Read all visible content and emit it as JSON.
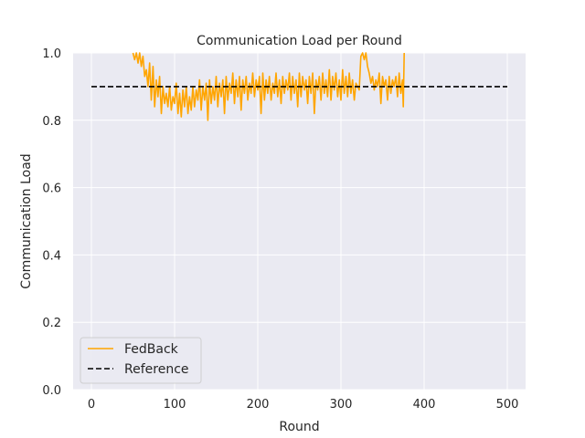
{
  "chart_data": {
    "type": "line",
    "title": "Communication Load per Round",
    "xlabel": "Round",
    "ylabel": "Communication Load",
    "xlim": [
      -22,
      522
    ],
    "ylim": [
      0.0,
      1.0
    ],
    "xticks": [
      0,
      100,
      200,
      300,
      400,
      500
    ],
    "yticks": [
      0.0,
      0.2,
      0.4,
      0.6,
      0.8,
      1.0
    ],
    "xtick_labels": [
      "0",
      "100",
      "200",
      "300",
      "400",
      "500"
    ],
    "ytick_labels": [
      "0.0",
      "0.2",
      "0.4",
      "0.6",
      "0.8",
      "1.0"
    ],
    "grid": true,
    "background": "#eaeaf2",
    "legend": {
      "placement": "lower-left",
      "entries": [
        {
          "label": "FedBack",
          "color": "#ffa500",
          "style": "solid"
        },
        {
          "label": "Reference",
          "color": "#000000",
          "style": "dashed"
        }
      ]
    },
    "series": [
      {
        "name": "FedBack",
        "color": "#ffa500",
        "style": "solid",
        "x": [
          50,
          52,
          54,
          56,
          58,
          60,
          62,
          64,
          66,
          68,
          70,
          72,
          74,
          76,
          78,
          80,
          82,
          84,
          86,
          88,
          90,
          92,
          94,
          96,
          98,
          100,
          102,
          104,
          106,
          108,
          110,
          112,
          114,
          116,
          118,
          120,
          122,
          124,
          126,
          128,
          130,
          132,
          134,
          136,
          138,
          140,
          142,
          144,
          146,
          148,
          150,
          152,
          154,
          156,
          158,
          160,
          162,
          164,
          166,
          168,
          170,
          172,
          174,
          176,
          178,
          180,
          182,
          184,
          186,
          188,
          190,
          192,
          194,
          196,
          198,
          200,
          202,
          204,
          206,
          208,
          210,
          212,
          214,
          216,
          218,
          220,
          222,
          224,
          226,
          228,
          230,
          232,
          234,
          236,
          238,
          240,
          242,
          244,
          246,
          248,
          250,
          252,
          254,
          256,
          258,
          260,
          262,
          264,
          266,
          268,
          270,
          272,
          274,
          276,
          278,
          280,
          282,
          284,
          286,
          288,
          290,
          292,
          294,
          296,
          298,
          300,
          302,
          304,
          306,
          308,
          310,
          312,
          314,
          316,
          318,
          320,
          322,
          324,
          326,
          328,
          330,
          332,
          334,
          336,
          338,
          340,
          342,
          344,
          346,
          348,
          350,
          352,
          354,
          356,
          358,
          360,
          362,
          364,
          366,
          368,
          370,
          372,
          374,
          375,
          376
        ],
        "y": [
          1.0,
          0.98,
          1.0,
          0.97,
          1.0,
          0.96,
          0.99,
          0.93,
          0.95,
          0.9,
          0.97,
          0.86,
          0.96,
          0.84,
          0.92,
          0.87,
          0.93,
          0.82,
          0.9,
          0.85,
          0.88,
          0.84,
          0.9,
          0.83,
          0.87,
          0.85,
          0.91,
          0.82,
          0.88,
          0.81,
          0.89,
          0.84,
          0.9,
          0.82,
          0.87,
          0.83,
          0.9,
          0.84,
          0.89,
          0.86,
          0.92,
          0.83,
          0.9,
          0.86,
          0.91,
          0.8,
          0.92,
          0.85,
          0.9,
          0.86,
          0.93,
          0.84,
          0.91,
          0.87,
          0.92,
          0.82,
          0.93,
          0.86,
          0.91,
          0.88,
          0.94,
          0.85,
          0.92,
          0.87,
          0.93,
          0.83,
          0.92,
          0.88,
          0.93,
          0.86,
          0.91,
          0.88,
          0.94,
          0.87,
          0.92,
          0.89,
          0.93,
          0.82,
          0.94,
          0.86,
          0.92,
          0.88,
          0.93,
          0.86,
          0.91,
          0.88,
          0.94,
          0.87,
          0.92,
          0.85,
          0.93,
          0.88,
          0.92,
          0.89,
          0.94,
          0.86,
          0.93,
          0.88,
          0.92,
          0.84,
          0.94,
          0.87,
          0.93,
          0.89,
          0.92,
          0.85,
          0.93,
          0.88,
          0.94,
          0.82,
          0.92,
          0.89,
          0.93,
          0.86,
          0.94,
          0.88,
          0.92,
          0.87,
          0.95,
          0.86,
          0.93,
          0.89,
          0.94,
          0.87,
          0.92,
          0.86,
          0.95,
          0.88,
          0.93,
          0.87,
          0.94,
          0.88,
          0.92,
          0.86,
          0.91,
          0.9,
          0.89,
          0.99,
          1.0,
          0.98,
          1.0,
          0.96,
          0.94,
          0.91,
          0.93,
          0.89,
          0.92,
          0.9,
          0.94,
          0.85,
          0.93,
          0.9,
          0.92,
          0.86,
          0.93,
          0.88,
          0.92,
          0.9,
          0.93,
          0.87,
          0.94,
          0.88,
          0.92,
          0.84,
          1.0
        ]
      },
      {
        "name": "Reference",
        "color": "#000000",
        "style": "dashed",
        "x": [
          0,
          500
        ],
        "y": [
          0.9,
          0.9
        ]
      }
    ]
  }
}
